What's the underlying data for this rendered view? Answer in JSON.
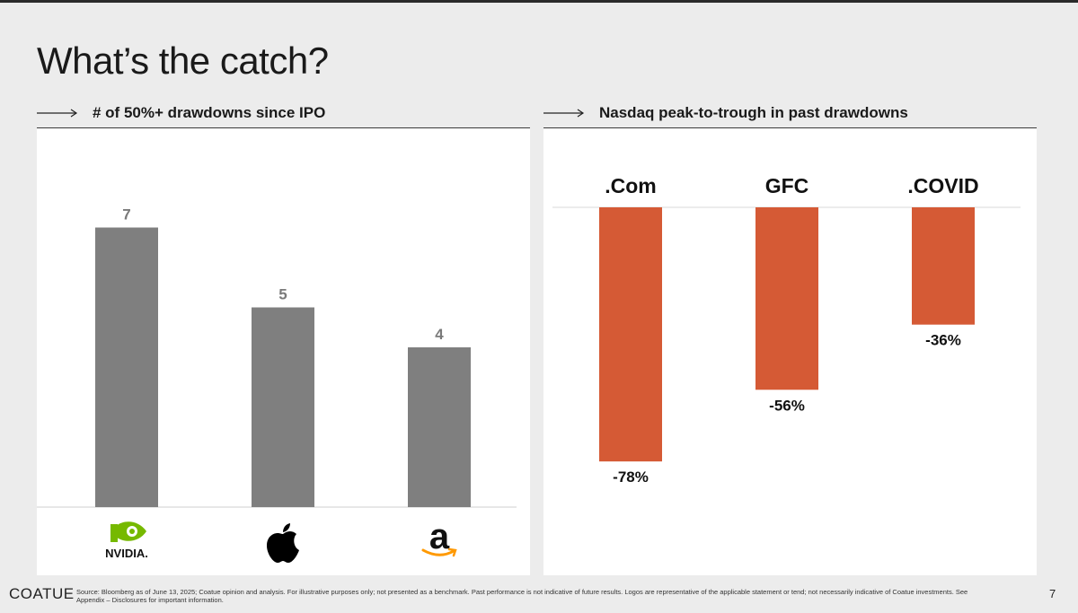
{
  "page": {
    "title": "What’s the catch?",
    "footer_logo": "COATUE",
    "footer_note": "Source: Bloomberg as of June 13, 2025; Coatue opinion and analysis. For illustrative purposes only; not presented as a benchmark. Past performance is not indicative of future results. Logos are representative of the applicable statement or tend; not necessarily indicative of Coatue investments. See Appendix – Disclosures for important information.",
    "page_number": "7"
  },
  "colors": {
    "gray_bar": "#7f7f7f",
    "orange_bar": "#d55a35",
    "label_gray": "#7a7a7a"
  },
  "chart_data": [
    {
      "type": "bar",
      "title": "# of 50%+ drawdowns since IPO",
      "categories": [
        "NVIDIA",
        "Apple",
        "Amazon"
      ],
      "category_icons": [
        "nvidia-logo-icon",
        "apple-logo-icon",
        "amazon-logo-icon"
      ],
      "values": [
        7,
        5,
        4
      ],
      "value_labels": [
        "7",
        "5",
        "4"
      ],
      "ylim": [
        0,
        8
      ],
      "grid": false
    },
    {
      "type": "bar",
      "title": "Nasdaq peak-to-trough in past drawdowns",
      "categories": [
        ".Com",
        "GFC",
        ".COVID"
      ],
      "values": [
        -78,
        -56,
        -36
      ],
      "value_labels": [
        "-78%",
        "-56%",
        "-36%"
      ],
      "ylim": [
        -78,
        0
      ],
      "grid": false
    }
  ]
}
